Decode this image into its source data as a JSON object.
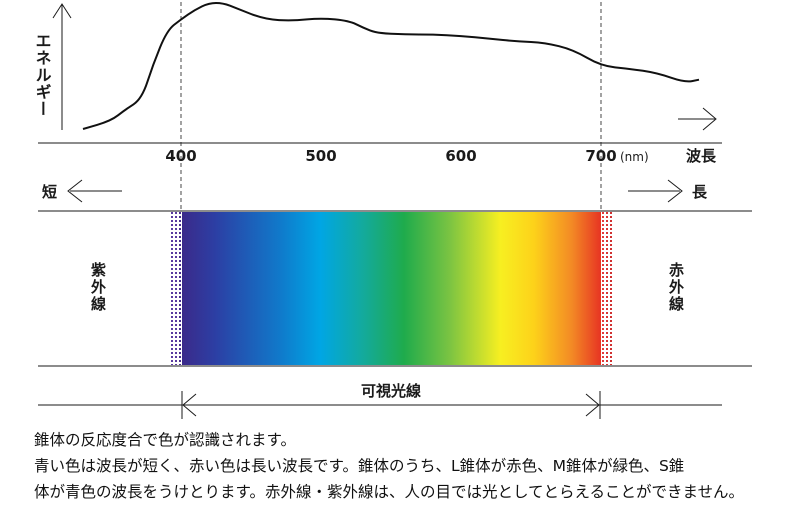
{
  "energy_axis_label": "エネルギー",
  "wavelength_axis_label": "波長",
  "unit": "(nm)",
  "ticks": [
    "400",
    "500",
    "600",
    "700"
  ],
  "short_label": "短",
  "long_label": "長",
  "ultraviolet_label": "紫外線",
  "infrared_label": "赤外線",
  "visible_label": "可視光線",
  "caption": [
    "錐体の反応度合で色が認識されます。",
    "青い色は波長が短く、赤い色は長い波長です。錐体のうち、L錐体が赤色、M錐体が緑色、S錐",
    "体が青色の波長をうけとります。赤外線・紫外線は、人の目では光としてとらえることができません。"
  ],
  "spectrum_colors": [
    "#3b2a8a",
    "#2c3fa4",
    "#0f7ccc",
    "#00a6e4",
    "#13aa9e",
    "#1fab4c",
    "#7cc442",
    "#f7ef21",
    "#fdd21a",
    "#f38a25",
    "#e73423"
  ],
  "chart_data": {
    "type": "line",
    "x": [
      330,
      350,
      360,
      372,
      380,
      390,
      400,
      410,
      420,
      430,
      440,
      460,
      480,
      500,
      520,
      530,
      540,
      560,
      580,
      600,
      620,
      640,
      660,
      680,
      700,
      720,
      740,
      760,
      770
    ],
    "values": [
      0.08,
      0.14,
      0.22,
      0.3,
      0.55,
      0.8,
      0.88,
      0.95,
      1.0,
      1.0,
      0.96,
      0.88,
      0.87,
      0.89,
      0.87,
      0.82,
      0.78,
      0.77,
      0.77,
      0.76,
      0.74,
      0.72,
      0.71,
      0.66,
      0.54,
      0.52,
      0.49,
      0.42,
      0.44
    ],
    "xlim": [
      300,
      800
    ],
    "xticks": [
      400,
      500,
      600,
      700
    ],
    "xlabel": "波長",
    "ylabel": "エネルギー",
    "markers": [
      400,
      700
    ]
  }
}
